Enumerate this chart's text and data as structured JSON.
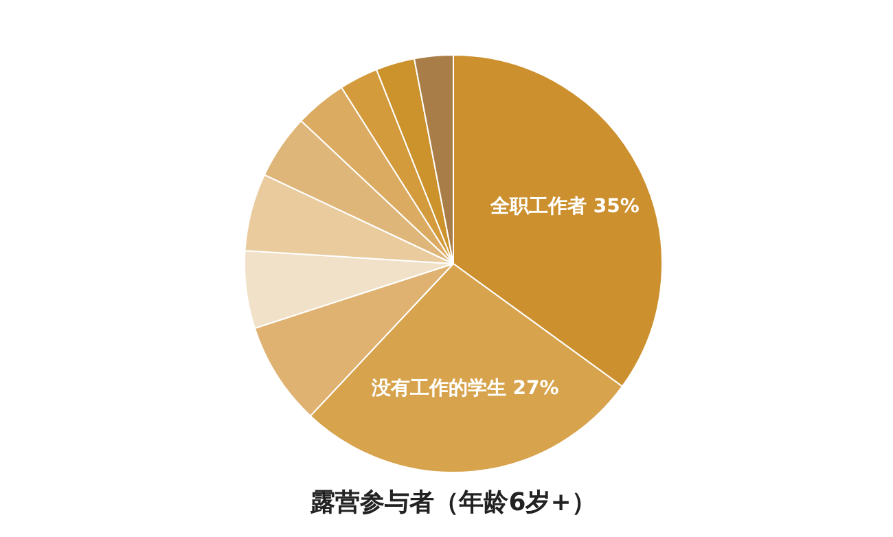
{
  "chart_data": {
    "type": "pie",
    "title": "露营参与者（年龄6岁+）",
    "categories": [
      "全职工作者",
      "没有工作的学生",
      null,
      null,
      null,
      null,
      null,
      null,
      null,
      null
    ],
    "values": [
      35,
      27,
      8,
      6,
      6,
      5,
      4,
      3,
      3,
      3
    ],
    "value_labels": [
      "35%",
      "27%",
      null,
      null,
      null,
      null,
      null,
      null,
      null,
      null
    ],
    "colors": [
      "#cc902e",
      "#d7a34d",
      "#dfb271",
      "#f1e1c8",
      "#e9cb9e",
      "#dfb679",
      "#dcab62",
      "#d39b3b",
      "#cc922c",
      "#a97d48"
    ]
  }
}
